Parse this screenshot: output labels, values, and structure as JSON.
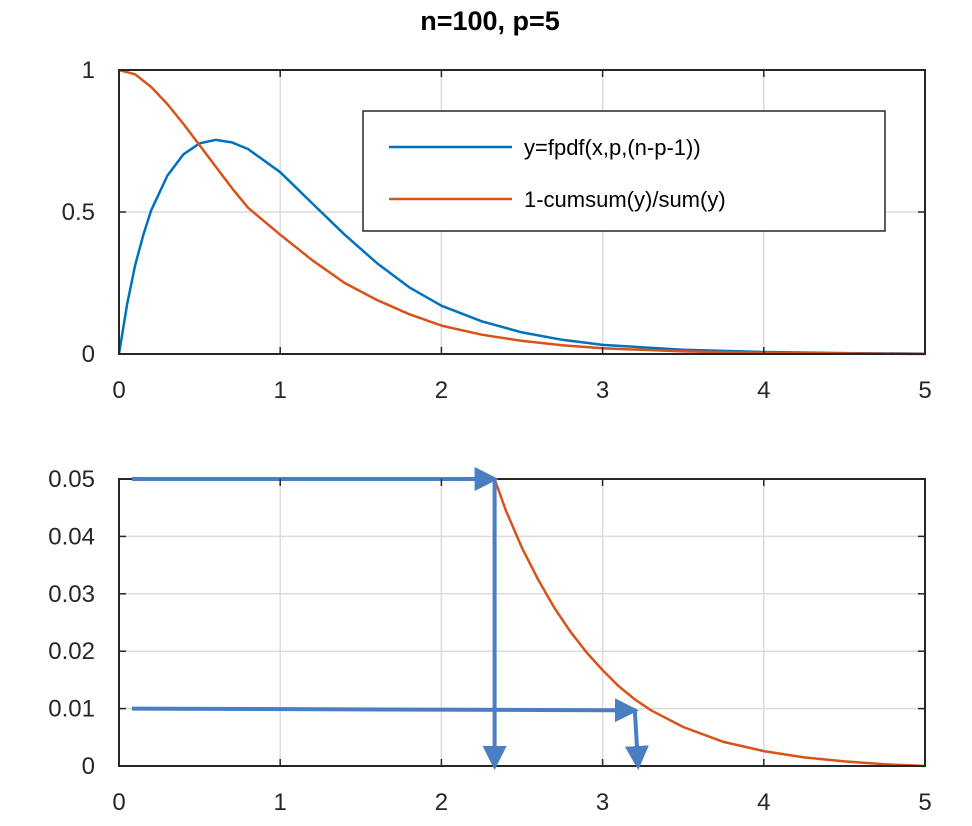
{
  "title": "n=100, p=5",
  "colors": {
    "pdf": "#0072BD",
    "survival": "#D95319",
    "annotation": "#4A7EC2"
  },
  "chart_data": [
    {
      "type": "line",
      "xlim": [
        0,
        5
      ],
      "ylim": [
        0,
        1
      ],
      "grid": true,
      "legend_placement": "top-right",
      "xticks": [
        "0",
        "1",
        "2",
        "3",
        "4",
        "5"
      ],
      "yticks": [
        "0",
        "0.5",
        "1"
      ],
      "series": [
        {
          "name": "y=fpdf(x,p,(n-p-1))",
          "color": "#0072BD",
          "x": [
            0,
            0.05,
            0.1,
            0.15,
            0.2,
            0.3,
            0.4,
            0.5,
            0.6,
            0.7,
            0.8,
            1.0,
            1.2,
            1.4,
            1.6,
            1.8,
            2.0,
            2.25,
            2.5,
            2.75,
            3.0,
            3.5,
            4.0,
            4.5,
            5.0
          ],
          "y": [
            0,
            0.175,
            0.312,
            0.418,
            0.506,
            0.628,
            0.703,
            0.742,
            0.754,
            0.745,
            0.722,
            0.64,
            0.53,
            0.42,
            0.32,
            0.235,
            0.17,
            0.115,
            0.076,
            0.05,
            0.032,
            0.015,
            0.007,
            0.003,
            0.001
          ]
        },
        {
          "name": "1-cumsum(y)/sum(y)",
          "color": "#D95319",
          "x": [
            0,
            0.1,
            0.2,
            0.3,
            0.4,
            0.5,
            0.6,
            0.7,
            0.8,
            1.0,
            1.2,
            1.4,
            1.6,
            1.8,
            2.0,
            2.25,
            2.5,
            2.75,
            3.0,
            3.5,
            4.0,
            4.5,
            5.0
          ],
          "y": [
            1.0,
            0.985,
            0.94,
            0.88,
            0.81,
            0.735,
            0.66,
            0.585,
            0.515,
            0.42,
            0.33,
            0.25,
            0.19,
            0.14,
            0.1,
            0.068,
            0.046,
            0.031,
            0.02,
            0.009,
            0.004,
            0.002,
            0.0
          ]
        }
      ]
    },
    {
      "type": "line",
      "xlim": [
        0,
        5
      ],
      "ylim": [
        0,
        0.05
      ],
      "grid": true,
      "xticks": [
        "0",
        "1",
        "2",
        "3",
        "4",
        "5"
      ],
      "yticks": [
        "0",
        "0.01",
        "0.02",
        "0.03",
        "0.04",
        "0.05"
      ],
      "series": [
        {
          "color": "#D95319",
          "x": [
            2.33,
            2.4,
            2.5,
            2.6,
            2.7,
            2.8,
            2.9,
            3.0,
            3.1,
            3.2,
            3.3,
            3.5,
            3.75,
            4.0,
            4.25,
            4.5,
            4.75,
            5.0
          ],
          "y": [
            0.05,
            0.0445,
            0.038,
            0.0325,
            0.0276,
            0.0234,
            0.0198,
            0.0167,
            0.0139,
            0.0116,
            0.0097,
            0.0068,
            0.0042,
            0.0026,
            0.0015,
            0.0008,
            0.0003,
            0.0
          ]
        }
      ],
      "annotations": [
        {
          "kind": "arrow",
          "from": [
            0.08,
            0.05
          ],
          "to": [
            2.33,
            0.05
          ]
        },
        {
          "kind": "arrow",
          "from": [
            2.33,
            0.05
          ],
          "to": [
            2.33,
            0.0
          ]
        },
        {
          "kind": "arrow",
          "from": [
            0.08,
            0.01
          ],
          "to": [
            3.2,
            0.0097
          ]
        },
        {
          "kind": "arrow",
          "from": [
            3.2,
            0.0097
          ],
          "to": [
            3.22,
            0.0
          ]
        }
      ]
    }
  ]
}
